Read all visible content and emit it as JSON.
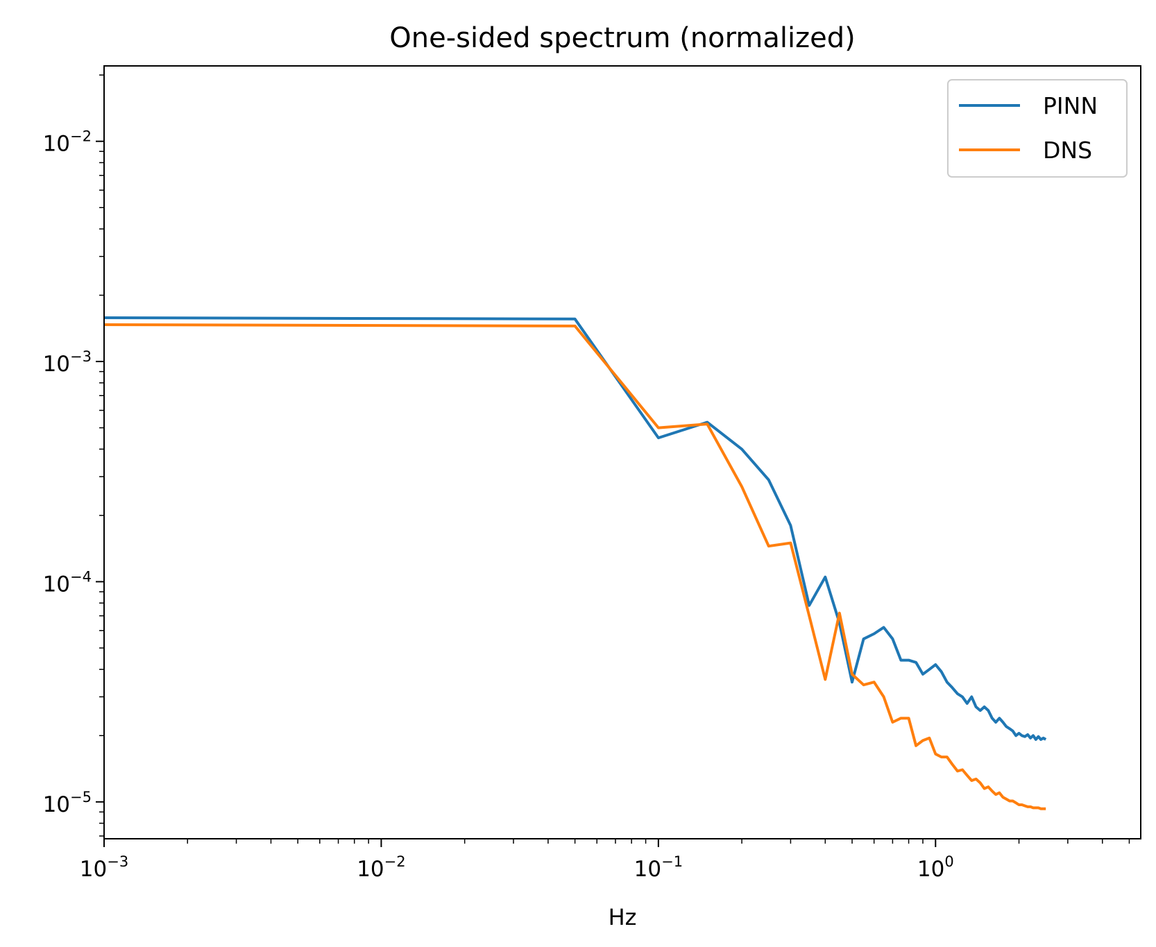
{
  "chart_data": {
    "type": "line",
    "title": "One-sided spectrum (normalized)",
    "xlabel": "Hz",
    "ylabel": "",
    "xscale": "log",
    "yscale": "log",
    "xlim": [
      0.001,
      5.5
    ],
    "ylim": [
      6.8e-06,
      0.022
    ],
    "x_tick_labels": [
      "10",
      "10",
      "10",
      "10"
    ],
    "x_tick_exponents": [
      "−3",
      "−2",
      "−1",
      "0"
    ],
    "x_tick_values": [
      0.001,
      0.01,
      0.1,
      1
    ],
    "y_tick_labels": [
      "10",
      "10",
      "10",
      "10"
    ],
    "y_tick_exponents": [
      "−5",
      "−4",
      "−3",
      "−2"
    ],
    "y_tick_values": [
      1e-05,
      0.0001,
      0.001,
      0.01
    ],
    "grid": false,
    "legend_position": "top-right",
    "series": [
      {
        "name": "PINN",
        "color": "#1f77b4",
        "x": [
          0.001,
          0.05,
          0.1,
          0.15,
          0.2,
          0.25,
          0.3,
          0.35,
          0.4,
          0.45,
          0.5,
          0.55,
          0.6,
          0.65,
          0.7,
          0.75,
          0.8,
          0.85,
          0.9,
          0.95,
          1.0,
          1.05,
          1.1,
          1.15,
          1.2,
          1.25,
          1.3,
          1.35,
          1.4,
          1.45,
          1.5,
          1.55,
          1.6,
          1.65,
          1.7,
          1.75,
          1.8,
          1.85,
          1.9,
          1.95,
          2.0,
          2.05,
          2.1,
          2.15,
          2.2,
          2.25,
          2.3,
          2.35,
          2.4,
          2.45,
          2.5
        ],
        "y": [
          0.00158,
          0.00156,
          0.00045,
          0.00053,
          0.0004,
          0.00029,
          0.00018,
          7.8e-05,
          0.000105,
          6.5e-05,
          3.5e-05,
          5.5e-05,
          5.8e-05,
          6.2e-05,
          5.5e-05,
          4.4e-05,
          4.4e-05,
          4.3e-05,
          3.8e-05,
          4e-05,
          4.2e-05,
          3.9e-05,
          3.5e-05,
          3.3e-05,
          3.1e-05,
          3e-05,
          2.8e-05,
          3e-05,
          2.7e-05,
          2.6e-05,
          2.7e-05,
          2.6e-05,
          2.4e-05,
          2.3e-05,
          2.4e-05,
          2.3e-05,
          2.2e-05,
          2.15e-05,
          2.1e-05,
          2e-05,
          2.05e-05,
          2e-05,
          1.98e-05,
          2.02e-05,
          1.95e-05,
          2e-05,
          1.92e-05,
          1.98e-05,
          1.92e-05,
          1.95e-05,
          1.92e-05
        ]
      },
      {
        "name": "DNS",
        "color": "#ff7f0e",
        "x": [
          0.001,
          0.05,
          0.1,
          0.15,
          0.2,
          0.25,
          0.3,
          0.35,
          0.4,
          0.45,
          0.5,
          0.55,
          0.6,
          0.65,
          0.7,
          0.75,
          0.8,
          0.85,
          0.9,
          0.95,
          1.0,
          1.05,
          1.1,
          1.15,
          1.2,
          1.25,
          1.3,
          1.35,
          1.4,
          1.45,
          1.5,
          1.55,
          1.6,
          1.65,
          1.7,
          1.75,
          1.8,
          1.85,
          1.9,
          1.95,
          2.0,
          2.05,
          2.1,
          2.15,
          2.2,
          2.25,
          2.3,
          2.35,
          2.4,
          2.45,
          2.5
        ],
        "y": [
          0.00147,
          0.00145,
          0.0005,
          0.00052,
          0.00027,
          0.000145,
          0.00015,
          7e-05,
          3.6e-05,
          7.2e-05,
          3.8e-05,
          3.4e-05,
          3.5e-05,
          3e-05,
          2.3e-05,
          2.4e-05,
          2.4e-05,
          1.8e-05,
          1.9e-05,
          1.95e-05,
          1.65e-05,
          1.6e-05,
          1.6e-05,
          1.48e-05,
          1.38e-05,
          1.4e-05,
          1.32e-05,
          1.25e-05,
          1.27e-05,
          1.22e-05,
          1.15e-05,
          1.17e-05,
          1.12e-05,
          1.08e-05,
          1.1e-05,
          1.05e-05,
          1.03e-05,
          1.01e-05,
          1.01e-05,
          9.9e-06,
          9.7e-06,
          9.7e-06,
          9.6e-06,
          9.5e-06,
          9.5e-06,
          9.4e-06,
          9.4e-06,
          9.4e-06,
          9.3e-06,
          9.3e-06,
          9.3e-06
        ]
      }
    ]
  }
}
